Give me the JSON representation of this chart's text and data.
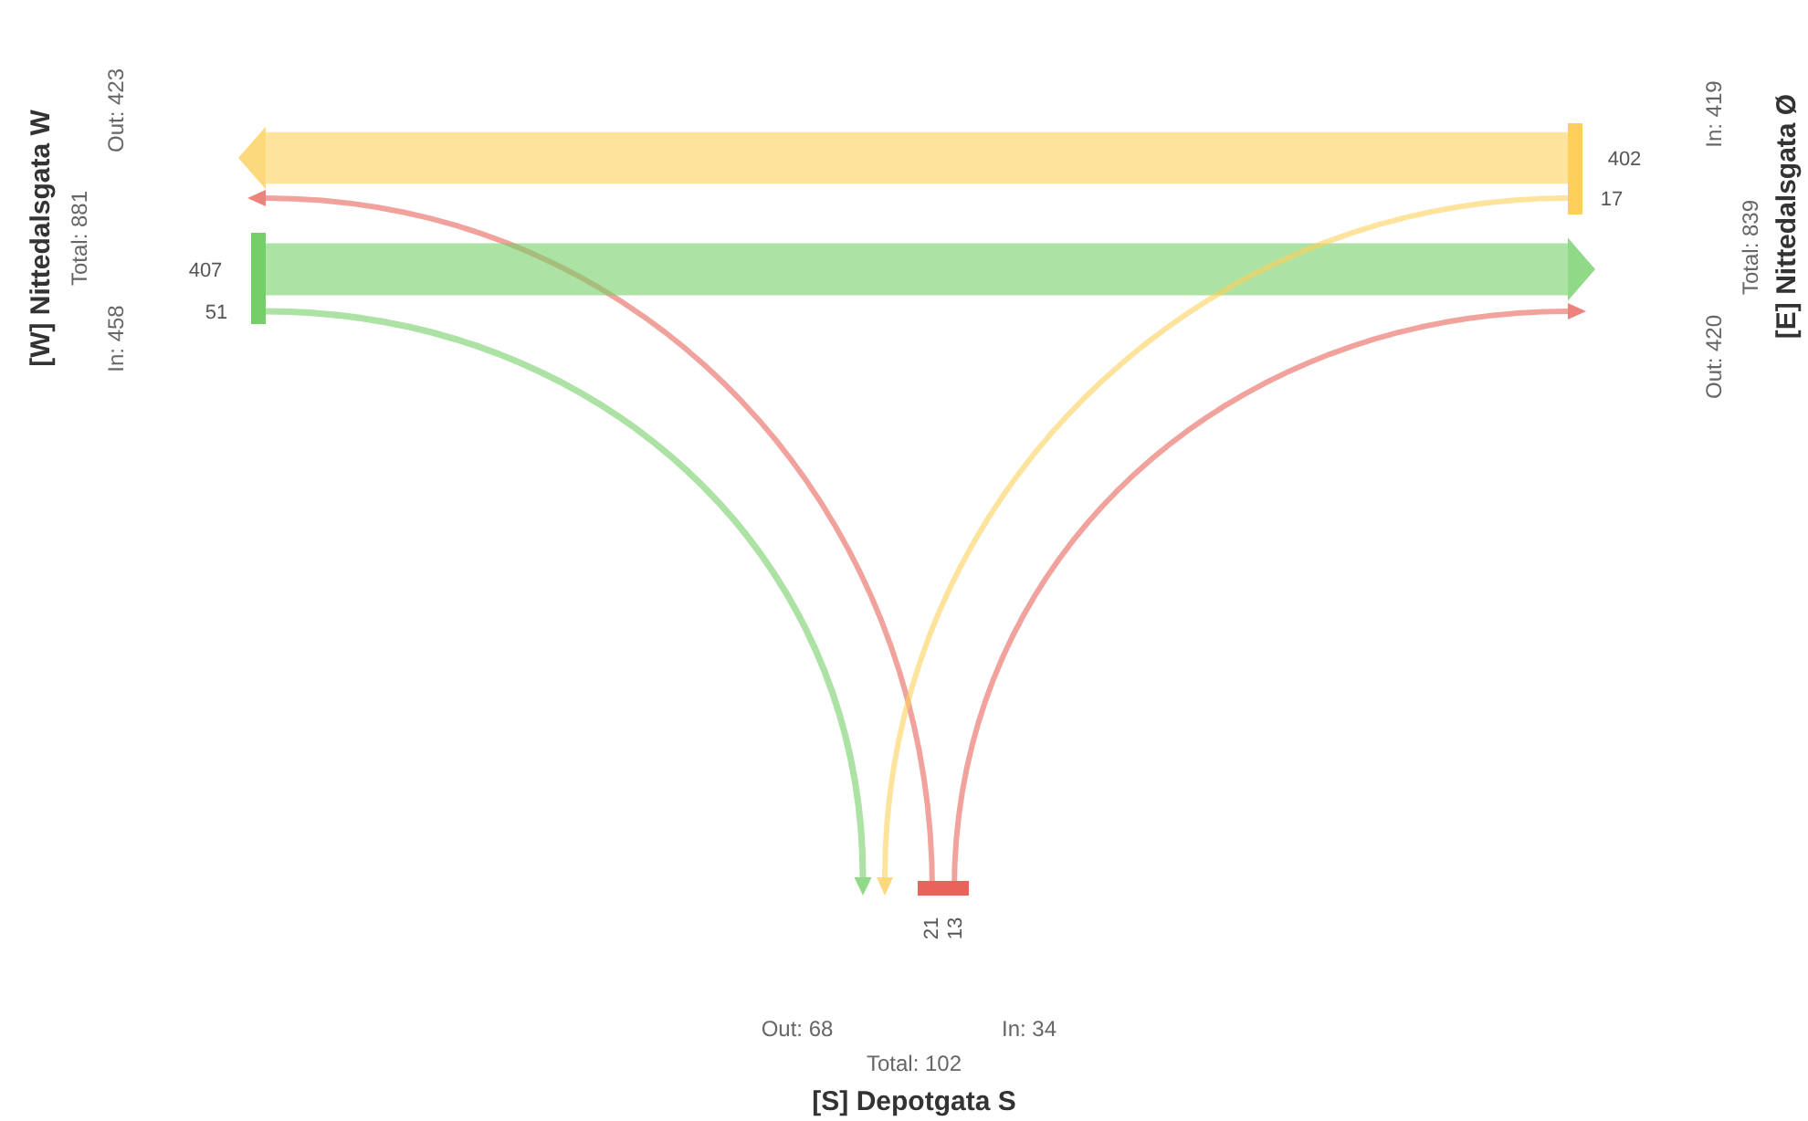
{
  "chart_data": {
    "type": "other",
    "categories": [
      "[W] Nittedalsgata W",
      "[E] Nittedalsgata Ø",
      "[S] Depotgata S"
    ],
    "series": [
      {
        "colors": [
          "#74cf68",
          "#fdd05c",
          "#e8645a"
        ],
        "values": [
          null,
          402,
          21
        ]
      },
      {
        "colors": [
          "#74cf68",
          "#fdd05c",
          "#e8645a"
        ],
        "values": [
          407,
          null,
          13
        ]
      },
      {
        "colors": [
          "#74cf68",
          "#fdd05c",
          "#e8645a"
        ],
        "values": [
          51,
          17,
          null
        ]
      }
    ],
    "annotations": [
      "In: 458",
      "Total: 881",
      "Out: 423",
      "In: 419",
      "Total: 839",
      "Out: 420",
      "Out: 68",
      "Total: 102",
      "In: 34"
    ],
    "data_labels": true
  }
}
